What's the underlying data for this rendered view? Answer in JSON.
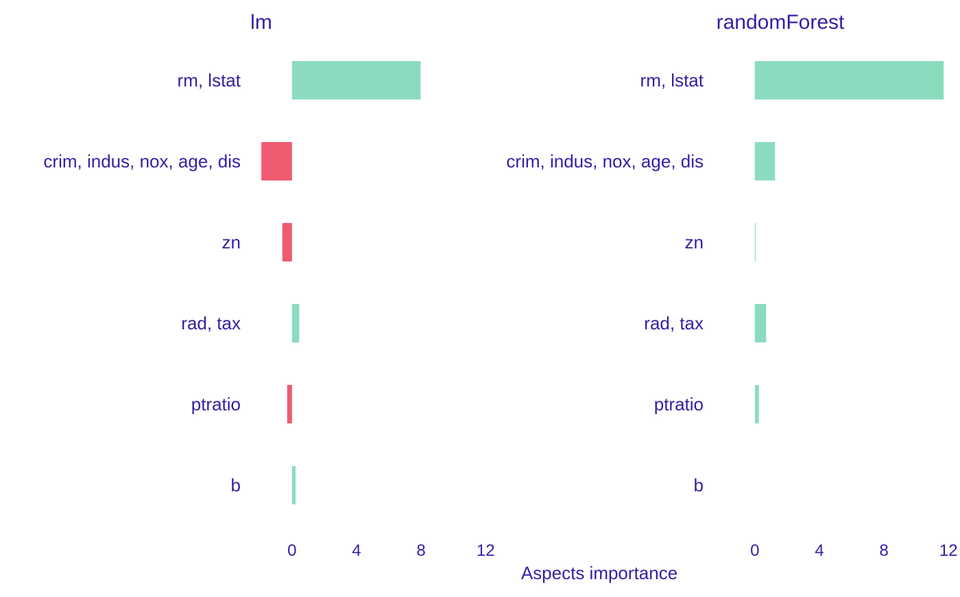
{
  "colors": {
    "text": "#371ea3",
    "positive": "#8bdcbe",
    "negative": "#f05a71"
  },
  "chart_data": [
    {
      "type": "bar",
      "orientation": "horizontal",
      "title": "lm",
      "categories": [
        "rm, lstat",
        "crim, indus, nox, age, dis",
        "zn",
        "rad, tax",
        "ptratio",
        "b"
      ],
      "values": [
        7.97,
        -1.9,
        -0.6,
        0.45,
        -0.3,
        0.22
      ],
      "xlim": [
        -2.5,
        12.5
      ],
      "xticks": [
        0,
        4,
        8,
        12
      ],
      "grid": false
    },
    {
      "type": "bar",
      "orientation": "horizontal",
      "title": "randomForest",
      "categories": [
        "rm, lstat",
        "crim, indus, nox, age, dis",
        "zn",
        "rad, tax",
        "ptratio",
        "b"
      ],
      "values": [
        11.7,
        1.25,
        0.05,
        0.7,
        0.25,
        0.0
      ],
      "xlim": [
        -2.5,
        12.5
      ],
      "xticks": [
        0,
        4,
        8,
        12
      ],
      "grid": false
    }
  ],
  "xlabel": "Aspects importance"
}
